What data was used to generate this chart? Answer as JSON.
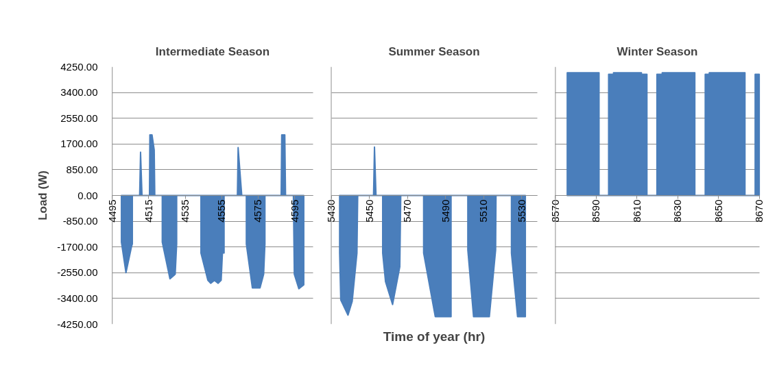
{
  "chart_data": [
    {
      "type": "area",
      "title": "Intermediate Season",
      "ylabel": "Load (W)",
      "grid": "y",
      "x": [
        4500,
        4500,
        4502.5,
        4505.5,
        4506,
        4506,
        4510,
        4510.5,
        4511.3,
        4515.4,
        4515.6,
        4516.8,
        4518,
        4518.3,
        4522.4,
        4522.4,
        4526.6,
        4529.5,
        4530.3,
        4530.3,
        4543.6,
        4543.6,
        4547.4,
        4549,
        4551,
        4553,
        4554.7,
        4555.4,
        4556.3,
        4556.3,
        4563.6,
        4564,
        4566,
        4568.5,
        4568.5,
        4571.8,
        4576,
        4578,
        4578.7,
        4578.7,
        4587.6,
        4587.9,
        4589.6,
        4590,
        4594.3,
        4594.8,
        4597.3,
        4600,
        4600
      ],
      "series": [
        {
          "color": "#4a7ebb",
          "values": [
            0,
            -1540,
            -2550,
            -1700,
            -1600,
            0,
            0,
            1430,
            0,
            0,
            2000,
            2000,
            1500,
            0,
            0,
            -1540,
            -2750,
            -2600,
            -1600,
            0,
            0,
            -1900,
            -2800,
            -2900,
            -2800,
            -2900,
            -2800,
            -1900,
            -1900,
            0,
            0,
            1580,
            0,
            0,
            -1600,
            -3050,
            -3050,
            -2600,
            -1600,
            0,
            0,
            2000,
            2000,
            0,
            0,
            -2600,
            -3080,
            -2950,
            0
          ]
        }
      ],
      "xlim": [
        4495,
        4605
      ],
      "xticks": [
        4495,
        4515,
        4535,
        4555,
        4575,
        4595
      ],
      "ylim": [
        -4250,
        4250
      ],
      "yticks": [
        {
          "value": -4250,
          "label": "-4250.00"
        },
        {
          "value": -3400,
          "label": "-3400.00"
        },
        {
          "value": -2550,
          "label": "-2550.00"
        },
        {
          "value": -1700,
          "label": "-1700.00"
        },
        {
          "value": -850,
          "label": "-850.00"
        },
        {
          "value": 0,
          "label": "0.00"
        },
        {
          "value": 850,
          "label": "850.00"
        },
        {
          "value": 1700,
          "label": "1700.00"
        },
        {
          "value": 2550,
          "label": "2550.00"
        },
        {
          "value": 3400,
          "label": "3400.00"
        },
        {
          "value": 4250,
          "label": "4250.00"
        }
      ]
    },
    {
      "type": "area",
      "title": "Summer Season",
      "xlabel": "Time of year (hr)",
      "grid": "y",
      "tick_labels": "x",
      "x": [
        5434.4,
        5434.4,
        5435,
        5438.8,
        5441,
        5443.5,
        5443.9,
        5452.2,
        5452.7,
        5453.5,
        5457,
        5457,
        5458.5,
        5462.2,
        5466,
        5466.5,
        5478.5,
        5478.5,
        5484.6,
        5491.1,
        5492.9,
        5492.9,
        5501.7,
        5501.7,
        5504.7,
        5513,
        5516.3,
        5516.5,
        5524.6,
        5524.6,
        5527.8,
        5531.9,
        5531.9
      ],
      "series": [
        {
          "color": "#4a7ebb",
          "values": [
            0,
            -1900,
            -3450,
            -3950,
            -3500,
            -1900,
            0,
            0,
            1600,
            0,
            0,
            -1900,
            -2850,
            -3600,
            -2350,
            0,
            0,
            -1900,
            -4000,
            -4000,
            -4000,
            0,
            0,
            -1800,
            -4000,
            -4000,
            -1800,
            0,
            0,
            -1900,
            -4000,
            -4000,
            0
          ]
        }
      ],
      "xlim": [
        5430,
        5538
      ],
      "xticks": [
        5430,
        5450,
        5470,
        5490,
        5510,
        5530
      ],
      "ylim": [
        -4250,
        4250
      ],
      "yticks": [
        {
          "value": -4250,
          "label": null
        },
        {
          "value": -3400,
          "label": null
        },
        {
          "value": -2550,
          "label": null
        },
        {
          "value": -1700,
          "label": null
        },
        {
          "value": -850,
          "label": null
        },
        {
          "value": 0,
          "label": null
        },
        {
          "value": 850,
          "label": null
        },
        {
          "value": 1700,
          "label": null
        },
        {
          "value": 2550,
          "label": null
        },
        {
          "value": 3400,
          "label": null
        },
        {
          "value": 4250,
          "label": null
        }
      ]
    },
    {
      "type": "area",
      "title": "Winter Season",
      "grid": "y",
      "tick_labels": "x",
      "x": [
        8575.8,
        8575.8,
        8591.4,
        8591.4,
        8596.1,
        8596.1,
        8598.5,
        8598.5,
        8612.2,
        8612.2,
        8614.9,
        8614.9,
        8619.8,
        8619.8,
        8622.4,
        8622.4,
        8638.4,
        8638.4,
        8643.5,
        8643.5,
        8645.5,
        8645.5,
        8663,
        8663,
        8668,
        8668,
        8670
      ],
      "series": [
        {
          "color": "#4a7ebb",
          "values": [
            0,
            4050,
            4050,
            0,
            0,
            4000,
            4000,
            4050,
            4050,
            4000,
            4000,
            0,
            0,
            4000,
            4000,
            4050,
            4050,
            0,
            0,
            4000,
            4000,
            4050,
            4050,
            0,
            0,
            4000,
            4000
          ]
        }
      ],
      "xlim": [
        8570,
        8670
      ],
      "xticks": [
        8570,
        8590,
        8610,
        8630,
        8650,
        8670
      ],
      "ylim": [
        -4250,
        4250
      ],
      "yticks": [
        {
          "value": -4250,
          "label": null
        },
        {
          "value": -3400,
          "label": null
        },
        {
          "value": -2550,
          "label": null
        },
        {
          "value": -1700,
          "label": null
        },
        {
          "value": -850,
          "label": null
        },
        {
          "value": 0,
          "label": null
        },
        {
          "value": 850,
          "label": null
        },
        {
          "value": 1700,
          "label": null
        },
        {
          "value": 2550,
          "label": null
        },
        {
          "value": 3400,
          "label": null
        },
        {
          "value": 4250,
          "label": null
        }
      ]
    }
  ]
}
